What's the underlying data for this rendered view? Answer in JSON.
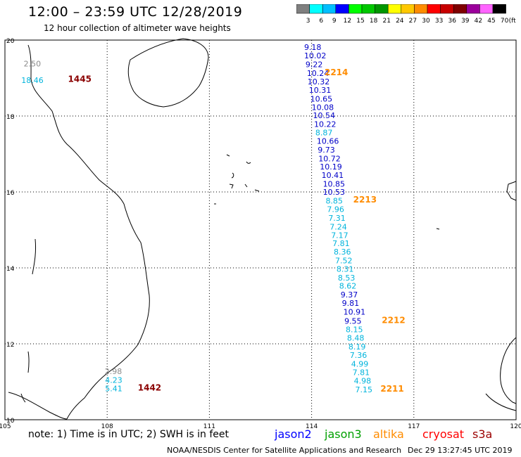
{
  "header": {
    "title": "12:00 – 23:59 UTC 12/28/2019",
    "subtitle": "12 hour collection of altimeter wave heights"
  },
  "colorbar": {
    "unit": "(ft)",
    "ticks": [
      "3",
      "6",
      "9",
      "12",
      "15",
      "18",
      "21",
      "24",
      "27",
      "30",
      "33",
      "36",
      "39",
      "42",
      "45",
      "70"
    ],
    "colors": [
      "#7f7f7f",
      "#00ffff",
      "#00bfff",
      "#0000ff",
      "#00ff00",
      "#00c800",
      "#009600",
      "#ffff00",
      "#ffc800",
      "#ff8c00",
      "#ff0000",
      "#c80000",
      "#7f0000",
      "#9b009b",
      "#ff64ff",
      "#000000"
    ]
  },
  "axes": {
    "x_labels": [
      "105",
      "108",
      "111",
      "114",
      "117",
      "120"
    ],
    "y_labels": [
      "20",
      "18",
      "16",
      "14",
      "12",
      "10"
    ]
  },
  "chart_data": {
    "type": "scatter",
    "title": "12:00 – 23:59 UTC 12/28/2019",
    "subtitle": "12 hour collection of altimeter wave heights",
    "xlim": [
      105,
      120
    ],
    "ylim": [
      10,
      20
    ],
    "points": [
      {
        "lon": 113.78,
        "lat": 19.74,
        "value": "9.18",
        "sat": "jason2"
      },
      {
        "lon": 113.78,
        "lat": 19.52,
        "value": "10.02",
        "sat": "jason2"
      },
      {
        "lon": 113.82,
        "lat": 19.29,
        "value": "9.22",
        "sat": "jason2"
      },
      {
        "lon": 113.86,
        "lat": 19.06,
        "value": "10.24",
        "sat": "jason2"
      },
      {
        "lon": 113.88,
        "lat": 18.83,
        "value": "10.32",
        "sat": "jason2"
      },
      {
        "lon": 113.92,
        "lat": 18.61,
        "value": "10.31",
        "sat": "jason2"
      },
      {
        "lon": 113.96,
        "lat": 18.38,
        "value": "10.65",
        "sat": "jason2"
      },
      {
        "lon": 114.0,
        "lat": 18.16,
        "value": "10.08",
        "sat": "jason2"
      },
      {
        "lon": 114.04,
        "lat": 17.94,
        "value": "10.54",
        "sat": "jason2"
      },
      {
        "lon": 114.07,
        "lat": 17.71,
        "value": "10.22",
        "sat": "jason2"
      },
      {
        "lon": 114.11,
        "lat": 17.49,
        "value": "8.87",
        "sat": "jason3"
      },
      {
        "lon": 114.15,
        "lat": 17.27,
        "value": "10.66",
        "sat": "jason2"
      },
      {
        "lon": 114.18,
        "lat": 17.04,
        "value": "9.73",
        "sat": "jason2"
      },
      {
        "lon": 114.2,
        "lat": 16.81,
        "value": "10.72",
        "sat": "jason2"
      },
      {
        "lon": 114.24,
        "lat": 16.59,
        "value": "10.19",
        "sat": "jason2"
      },
      {
        "lon": 114.29,
        "lat": 16.37,
        "value": "10.41",
        "sat": "jason2"
      },
      {
        "lon": 114.33,
        "lat": 16.14,
        "value": "10.85",
        "sat": "jason2"
      },
      {
        "lon": 114.33,
        "lat": 15.93,
        "value": "10.53",
        "sat": "jason2"
      },
      {
        "lon": 114.41,
        "lat": 15.69,
        "value": "8.85",
        "sat": "jason3"
      },
      {
        "lon": 114.45,
        "lat": 15.47,
        "value": "7.96",
        "sat": "jason3"
      },
      {
        "lon": 114.49,
        "lat": 15.24,
        "value": "7.31",
        "sat": "jason3"
      },
      {
        "lon": 114.53,
        "lat": 15.01,
        "value": "7.24",
        "sat": "jason3"
      },
      {
        "lon": 114.57,
        "lat": 14.79,
        "value": "7.17",
        "sat": "jason3"
      },
      {
        "lon": 114.61,
        "lat": 14.57,
        "value": "7.81",
        "sat": "jason3"
      },
      {
        "lon": 114.65,
        "lat": 14.35,
        "value": "8.36",
        "sat": "jason3"
      },
      {
        "lon": 114.69,
        "lat": 14.12,
        "value": "7.52",
        "sat": "jason3"
      },
      {
        "lon": 114.73,
        "lat": 13.9,
        "value": "8.31",
        "sat": "jason3"
      },
      {
        "lon": 114.77,
        "lat": 13.67,
        "value": "8.53",
        "sat": "jason3"
      },
      {
        "lon": 114.81,
        "lat": 13.45,
        "value": "8.62",
        "sat": "jason3"
      },
      {
        "lon": 114.85,
        "lat": 13.22,
        "value": "9.37",
        "sat": "jason2"
      },
      {
        "lon": 114.89,
        "lat": 13.0,
        "value": "9.81",
        "sat": "jason2"
      },
      {
        "lon": 114.93,
        "lat": 12.77,
        "value": "10.91",
        "sat": "jason2"
      },
      {
        "lon": 114.96,
        "lat": 12.53,
        "value": "9.55",
        "sat": "jason2"
      },
      {
        "lon": 115.0,
        "lat": 12.31,
        "value": "8.15",
        "sat": "jason3"
      },
      {
        "lon": 115.04,
        "lat": 12.08,
        "value": "8.48",
        "sat": "jason3"
      },
      {
        "lon": 115.08,
        "lat": 11.85,
        "value": "8.19",
        "sat": "jason3"
      },
      {
        "lon": 115.12,
        "lat": 11.63,
        "value": "7.36",
        "sat": "jason3"
      },
      {
        "lon": 115.16,
        "lat": 11.4,
        "value": "4.99",
        "sat": "jason3"
      },
      {
        "lon": 115.2,
        "lat": 11.18,
        "value": "7.81",
        "sat": "jason3"
      },
      {
        "lon": 115.24,
        "lat": 10.95,
        "value": "4.98",
        "sat": "jason3"
      },
      {
        "lon": 115.28,
        "lat": 10.72,
        "value": "7.15",
        "sat": "jason3"
      },
      {
        "lon": 105.55,
        "lat": 19.31,
        "value": "2.50",
        "sat": "grey"
      },
      {
        "lon": 105.48,
        "lat": 18.87,
        "value": "18.46",
        "sat": "jason3"
      },
      {
        "lon": 107.93,
        "lat": 11.2,
        "value": "2.98",
        "sat": "grey"
      },
      {
        "lon": 107.94,
        "lat": 10.97,
        "value": "4.23",
        "sat": "jason3"
      },
      {
        "lon": 107.94,
        "lat": 10.75,
        "value": "5.41",
        "sat": "jason3"
      }
    ],
    "time_labels": [
      {
        "lon": 114.38,
        "lat": 19.07,
        "text": "2214",
        "sat": "altika"
      },
      {
        "lon": 115.22,
        "lat": 15.72,
        "text": "2213",
        "sat": "altika"
      },
      {
        "lon": 116.06,
        "lat": 12.55,
        "text": "2212",
        "sat": "altika"
      },
      {
        "lon": 116.02,
        "lat": 10.74,
        "text": "2211",
        "sat": "altika"
      },
      {
        "lon": 106.85,
        "lat": 18.9,
        "text": "1445",
        "sat": "s3a"
      },
      {
        "lon": 108.9,
        "lat": 10.77,
        "text": "1442",
        "sat": "s3a"
      }
    ]
  },
  "footer": {
    "note": "note: 1) Time is in UTC; 2) SWH is in feet",
    "satellites": [
      {
        "name": "jason2",
        "color": "#0000ff",
        "key": "jason2"
      },
      {
        "name": "jason3",
        "color": "#00a000",
        "key": "jason3"
      },
      {
        "name": "altika",
        "color": "#ff8c00",
        "key": "altika"
      },
      {
        "name": "cryosat",
        "color": "#ff0000",
        "key": "cryosat"
      },
      {
        "name": "s3a",
        "color": "#9b0000",
        "key": "s3a"
      }
    ],
    "credit": "NOAA/NESDIS Center for Satellite Applications and Research",
    "stamp": "Dec 29 13:27:45 UTC 2019"
  },
  "sat_colors": {
    "jason2": "#0000c8",
    "jason3": "#00b4dc",
    "altika": "#ff8c00",
    "s3a": "#8b0000",
    "grey": "#8c8c8c"
  }
}
